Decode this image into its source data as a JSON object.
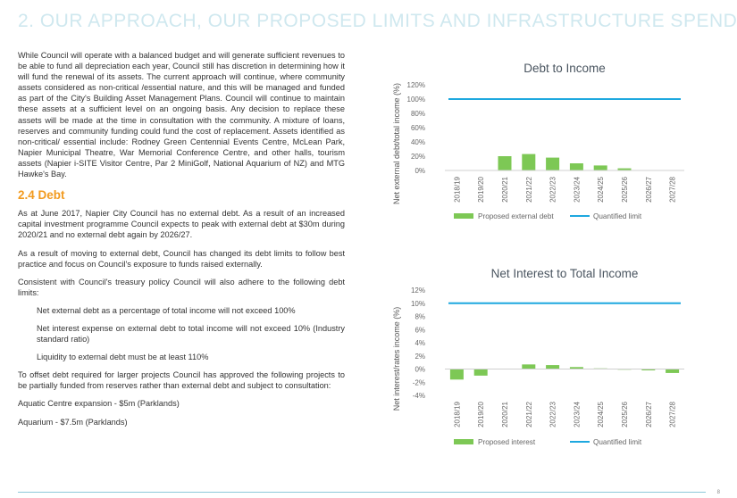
{
  "section": {
    "title": "2. OUR APPROACH, OUR PROPOSED LIMITS AND INFRASTRUCTURE SPEND"
  },
  "text": {
    "intro": "While Council will operate with a balanced budget and will generate sufficient revenues to be able to fund all depreciation each year, Council still has discretion in determining how it will fund the renewal of its assets. The current approach will continue, where community assets considered as non-critical /essential nature, and this will be managed and funded as part of the City's Building Asset Management Plans. Council will continue to maintain these assets at a sufficient level on an ongoing basis. Any decision to replace these assets will be made at the time in consultation with the community. A mixture of loans, reserves and community funding could fund the cost of replacement. Assets identified as non-critical/ essential include: Rodney Green Centennial Events Centre, McLean Park, Napier Municipal Theatre, War Memorial Conference Centre, and other halls, tourism assets (Napier i-SITE Visitor Centre, Par 2 MiniGolf, National Aquarium of NZ) and MTG Hawke's Bay.",
    "debt_heading": "2.4 Debt",
    "p1": "As at June 2017, Napier City Council has no external debt. As a result of an increased capital investment programme Council expects to peak with external debt at $30m during 2020/21 and no external debt again by 2026/27.",
    "p2": "As a result of moving to external debt, Council has changed its debt limits to follow best practice and focus on Council's exposure to funds raised externally.",
    "p3": "Consistent with Council's treasury policy Council will also adhere to the following debt limits:",
    "limit1": "Net external debt as a percentage of total income will not exceed 100%",
    "limit2": "Net interest expense on external debt to total income will not exceed 10% (Industry standard ratio)",
    "limit3": "Liquidity to external debt must be at least 110%",
    "p4": "To offset debt required for larger projects Council has approved the following projects to be partially funded from reserves rather than external debt and subject to consultation:",
    "project1": "Aquatic Centre expansion - $5m (Parklands)",
    "project2": "Aquarium - $7.5m (Parklands)"
  },
  "page_number": "8",
  "chart_data": [
    {
      "type": "bar",
      "title": "Debt to Income",
      "ylabel": "Net external debt/total income (%)",
      "xlabel": "",
      "categories": [
        "2018/19",
        "2019/20",
        "2020/21",
        "2021/22",
        "2022/23",
        "2023/24",
        "2024/25",
        "2025/26",
        "2026/27",
        "2027/28"
      ],
      "series": [
        {
          "name": "Proposed external debt",
          "type": "bar",
          "color": "#7dc855",
          "values": [
            0,
            0,
            20,
            23,
            18,
            10,
            7,
            3,
            0,
            0
          ]
        },
        {
          "name": "Quantified limit",
          "type": "line",
          "color": "#1ea8df",
          "values": [
            100,
            100,
            100,
            100,
            100,
            100,
            100,
            100,
            100,
            100
          ]
        }
      ],
      "yticks": [
        "0%",
        "20%",
        "40%",
        "60%",
        "80%",
        "100%",
        "120%"
      ],
      "ylim": [
        0,
        120
      ],
      "legend": "bottom"
    },
    {
      "type": "bar",
      "title": "Net Interest to Total Income",
      "ylabel": "Net interest/rates income (%)",
      "xlabel": "",
      "categories": [
        "2018/19",
        "2019/20",
        "2020/21",
        "2021/22",
        "2022/23",
        "2023/24",
        "2024/25",
        "2025/26",
        "2026/27",
        "2027/28"
      ],
      "series": [
        {
          "name": "Proposed interest",
          "type": "bar",
          "color": "#7dc855",
          "values": [
            -1.6,
            -1.0,
            0,
            0.7,
            0.6,
            0.3,
            0.1,
            -0.1,
            -0.2,
            -0.6
          ]
        },
        {
          "name": "Quantified limit",
          "type": "line",
          "color": "#1ea8df",
          "values": [
            10,
            10,
            10,
            10,
            10,
            10,
            10,
            10,
            10,
            10
          ]
        }
      ],
      "yticks": [
        "-4%",
        "-2%",
        "0%",
        "2%",
        "4%",
        "6%",
        "8%",
        "10%",
        "12%"
      ],
      "ylim": [
        -4,
        12
      ],
      "legend": "bottom"
    }
  ]
}
